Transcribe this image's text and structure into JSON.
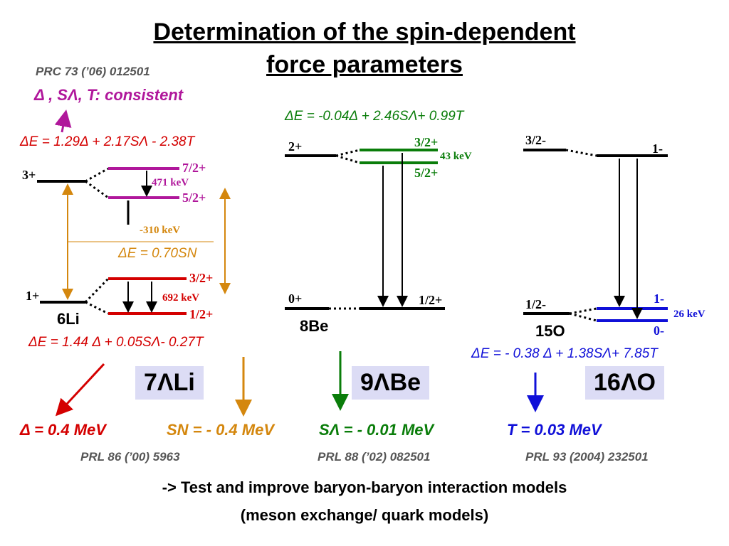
{
  "title": {
    "line1": "Determination of the spin-dependent",
    "line2": "force parameters"
  },
  "references": {
    "top": "PRC 73 (’06) 012501",
    "li": "PRL 86 (’00) 5963",
    "be": "PRL 88 (’02) 082501",
    "o": "PRL 93 (2004) 232501"
  },
  "consistent_note": "Δ , SΛ, T: consistent",
  "equations": {
    "li_upper": "ΔE = 1.29Δ + 2.17SΛ - 2.38T",
    "li_mid": "ΔE = 0.70SN",
    "li_lower": "ΔE = 1.44 Δ + 0.05SΛ- 0.27T",
    "be": "ΔE = -0.04Δ + 2.46SΛ+ 0.99T",
    "o": "ΔE = - 0.38 Δ + 1.38SΛ+ 7.85T"
  },
  "li_levels": {
    "core_upper": "3+",
    "core_lower": "1+",
    "hyp_7_2": "7/2+",
    "hyp_5_2": "5/2+",
    "hyp_3_2": "3/2+",
    "hyp_1_2": "1/2+",
    "gap_upper": "471 keV",
    "gap_lower": "692 keV",
    "shift": "-310 keV",
    "core_nucleus": "6Li"
  },
  "be_levels": {
    "core_upper": "2+",
    "core_lower": "0+",
    "hyp_3_2": "3/2+",
    "hyp_5_2": "5/2+",
    "hyp_1_2": "1/2+",
    "gap": "43 keV",
    "core_nucleus": "8Be"
  },
  "o_levels": {
    "core_upper": "3/2-",
    "core_lower": "1/2-",
    "hyp_1_upper": "1-",
    "hyp_1_lower": "1-",
    "hyp_0": "0-",
    "gap": "26 keV",
    "core_nucleus": "15O"
  },
  "hypernuclei": {
    "li": "7ΛLi",
    "be": "9ΛBe",
    "o": "16ΛO"
  },
  "parameters": {
    "delta": "Δ =  0.4 MeV",
    "sn": "SN = - 0.4 MeV",
    "slambda": "SΛ = - 0.01 MeV",
    "t": "T = 0.03 MeV"
  },
  "footer": {
    "line1": "-> Test and improve baryon-baryon interaction models",
    "line2": "(meson exchange/ quark models)"
  },
  "colors": {
    "magenta": "#b0179b",
    "red": "#d40000",
    "orange": "#d4870e",
    "green": "#0a7d0a",
    "blue": "#1010d8",
    "black": "#000000"
  }
}
